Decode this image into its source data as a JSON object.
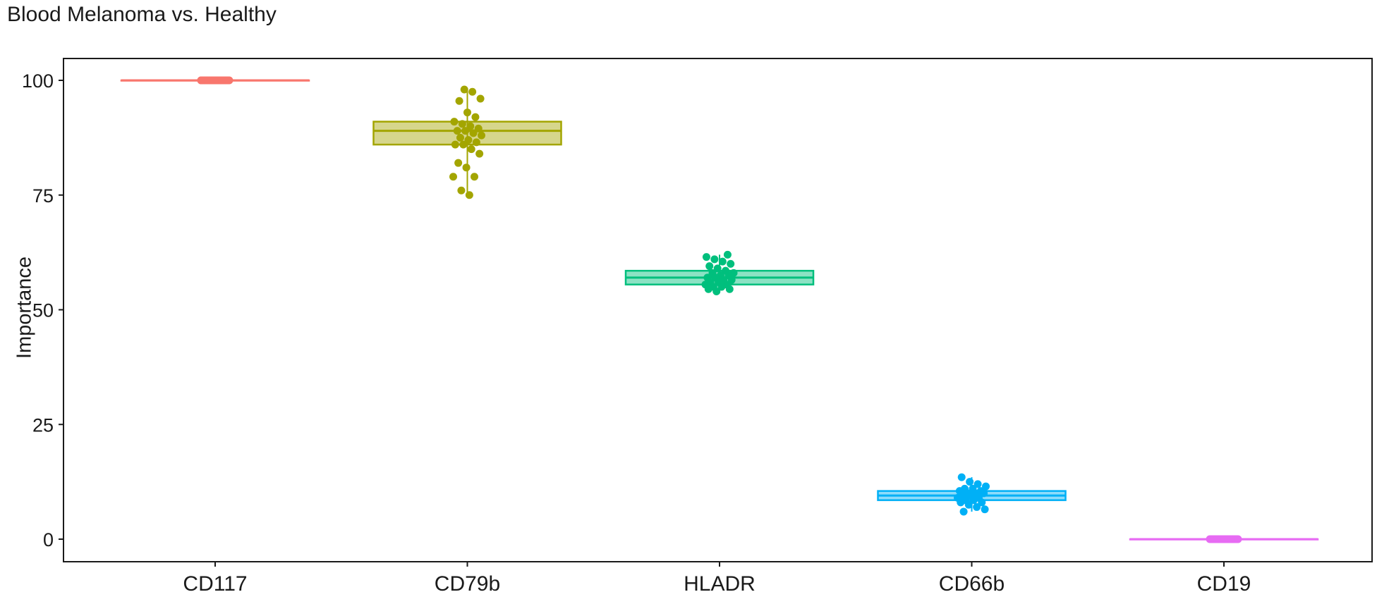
{
  "chart_data": {
    "type": "box",
    "title": "Blood Melanoma vs. Healthy",
    "xlabel": "",
    "ylabel": "Importance",
    "ylim": [
      -5,
      105
    ],
    "yticks": [
      0,
      25,
      50,
      75,
      100
    ],
    "grid": false,
    "legend": "none",
    "categories": [
      "CD117",
      "CD79b",
      "HLADR",
      "CD66b",
      "CD19"
    ],
    "colors": [
      "#f8766d",
      "#a3a500",
      "#00bf7d",
      "#00b0f6",
      "#e76bf3"
    ],
    "boxes": [
      {
        "category": "CD117",
        "min": 100,
        "q1": 100,
        "median": 100,
        "q3": 100,
        "max": 100,
        "points": [
          100,
          100,
          100,
          100,
          100,
          100,
          100,
          100,
          100,
          100,
          100,
          100,
          100,
          100,
          100,
          100,
          100,
          100,
          100,
          100,
          100,
          100,
          100,
          100,
          100,
          100,
          100,
          100,
          100,
          100
        ]
      },
      {
        "category": "CD79b",
        "min": 75,
        "q1": 86,
        "median": 89,
        "q3": 91,
        "max": 98,
        "points": [
          98,
          97.5,
          96,
          95.5,
          93,
          92,
          91,
          90.5,
          90,
          89.5,
          89,
          89,
          88.5,
          88,
          87.5,
          87,
          86.5,
          86,
          86,
          85,
          84,
          82,
          81,
          79,
          79,
          76,
          75
        ]
      },
      {
        "category": "HLADR",
        "min": 54,
        "q1": 55.5,
        "median": 57,
        "q3": 58.5,
        "max": 62,
        "points": [
          62,
          61.5,
          61,
          60.5,
          60,
          59.5,
          59,
          58.5,
          58,
          58,
          57.5,
          57.5,
          57,
          57,
          56.5,
          56.5,
          56,
          56,
          55.5,
          55.5,
          55,
          55,
          54.5,
          54.5,
          54
        ]
      },
      {
        "category": "CD66b",
        "min": 6,
        "q1": 8.5,
        "median": 9.5,
        "q3": 10.5,
        "max": 13.5,
        "points": [
          13.5,
          12.5,
          12,
          11.5,
          11,
          11,
          10.5,
          10.5,
          10,
          10,
          10,
          9.5,
          9.5,
          9,
          9,
          8.5,
          8.5,
          8,
          8,
          7.5,
          7,
          6.5,
          6
        ]
      },
      {
        "category": "CD19",
        "min": 0,
        "q1": 0,
        "median": 0,
        "q3": 0,
        "max": 0,
        "points": [
          0,
          0,
          0,
          0,
          0,
          0,
          0,
          0,
          0,
          0,
          0,
          0,
          0,
          0,
          0,
          0,
          0,
          0,
          0,
          0,
          0,
          0,
          0,
          0,
          0,
          0,
          0,
          0,
          0,
          0
        ]
      }
    ]
  }
}
